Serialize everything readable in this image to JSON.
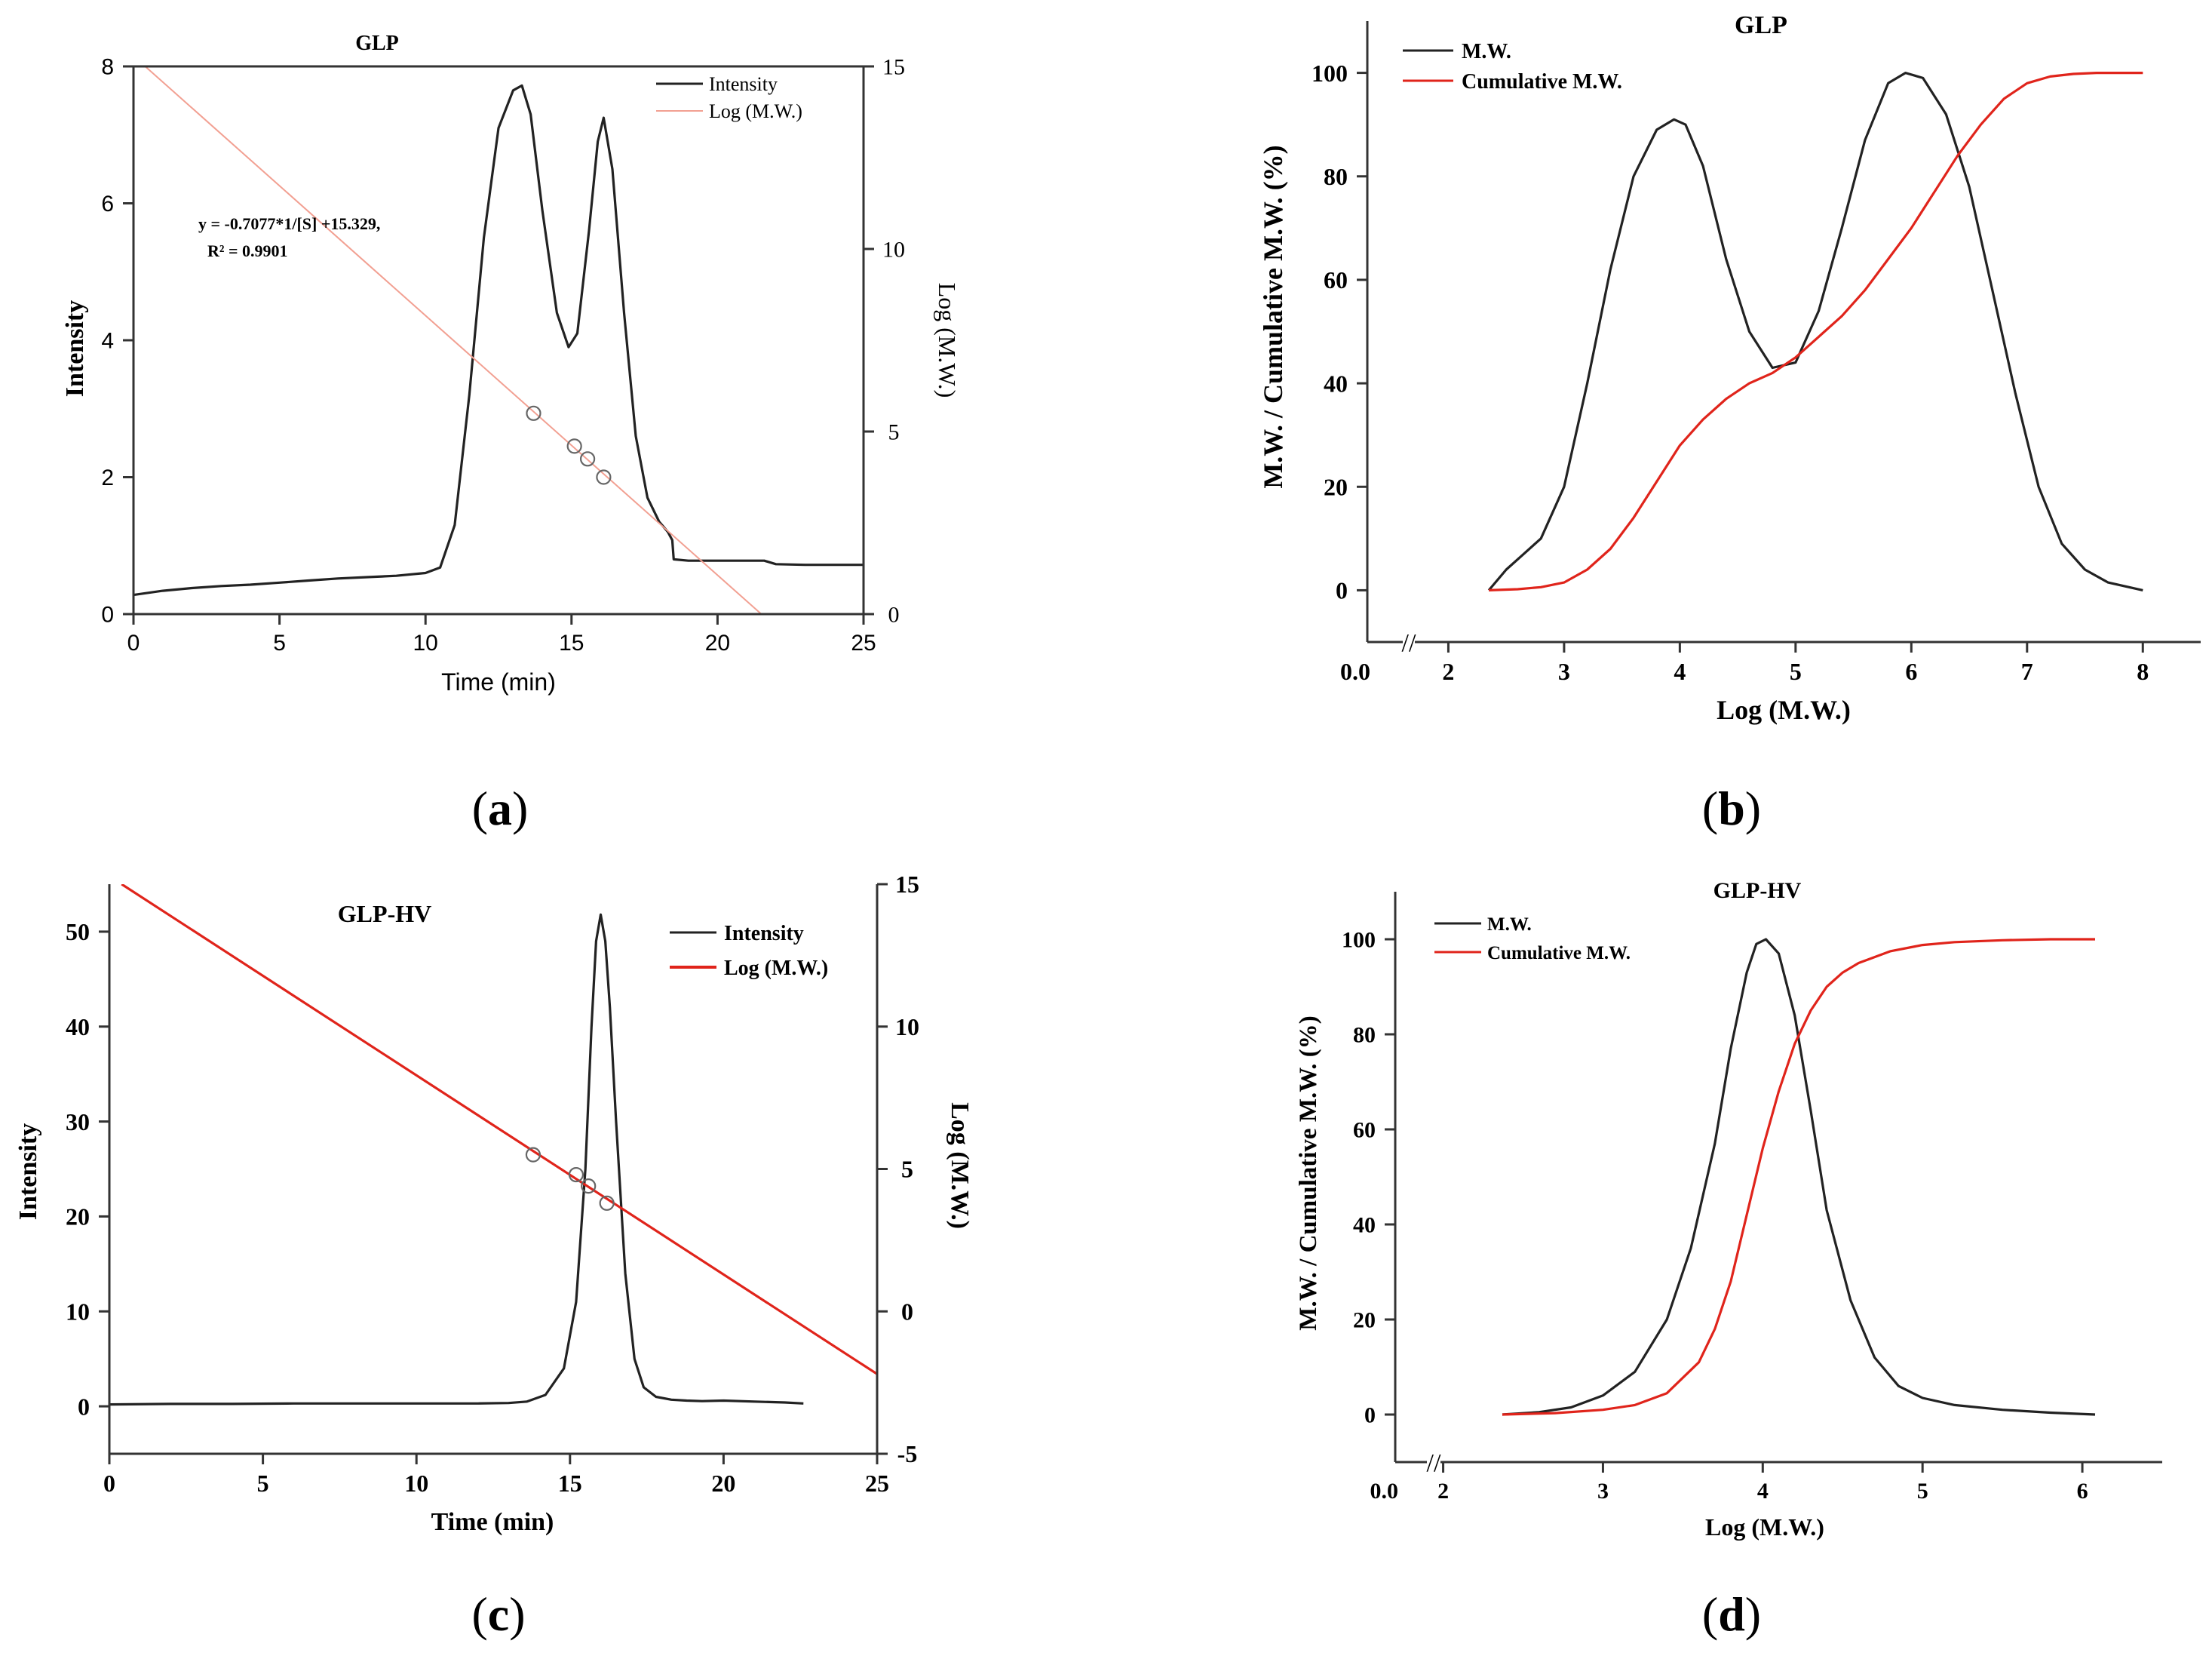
{
  "panels": [
    {
      "id": "a",
      "letter": "a",
      "type": "line",
      "title": "GLP",
      "xlabel": "Time (min)",
      "ylabel": "Intensity",
      "y2label": "Log (M.W.)",
      "xlim": [
        0,
        25
      ],
      "ylim": [
        0,
        8
      ],
      "y2lim": [
        0,
        15
      ],
      "xticks": [
        0,
        5,
        10,
        15,
        20,
        25
      ],
      "yticks": [
        0,
        2,
        4,
        6,
        8
      ],
      "y2ticks": [
        0,
        5,
        10,
        15
      ],
      "legend": [
        "Intensity",
        "Log (M.W.)"
      ],
      "annotation": [
        "y = -0.7077*1/[S] +15.329,",
        "R² = 0.9901"
      ],
      "series": [
        {
          "name": "Intensity",
          "axis": "y",
          "color": "#222222",
          "x": [
            0,
            1,
            2,
            3,
            4,
            5,
            6,
            7,
            8,
            9,
            10,
            10.5,
            11,
            11.5,
            12,
            12.5,
            13,
            13.3,
            13.6,
            14,
            14.5,
            14.9,
            15.2,
            15.6,
            15.9,
            16.1,
            16.4,
            16.8,
            17.2,
            17.6,
            18.0,
            18.3,
            18.45,
            18.5,
            19,
            20,
            21,
            21.6,
            22,
            23,
            24,
            25
          ],
          "y": [
            0.28,
            0.34,
            0.38,
            0.41,
            0.43,
            0.46,
            0.49,
            0.52,
            0.54,
            0.56,
            0.6,
            0.68,
            1.3,
            3.2,
            5.5,
            7.1,
            7.65,
            7.72,
            7.3,
            5.9,
            4.4,
            3.9,
            4.1,
            5.6,
            6.9,
            7.25,
            6.5,
            4.4,
            2.6,
            1.7,
            1.35,
            1.2,
            1.08,
            0.8,
            0.78,
            0.78,
            0.78,
            0.78,
            0.73,
            0.72,
            0.72,
            0.72
          ]
        },
        {
          "name": "Log (M.W.)",
          "axis": "y2",
          "color": "#f2a092",
          "x": [
            0.4,
            21.5
          ],
          "y": [
            15.0,
            0
          ]
        }
      ],
      "points": {
        "axis": "y2",
        "x": [
          13.7,
          15.1,
          15.55,
          16.1
        ],
        "y": [
          5.5,
          4.6,
          4.25,
          3.75
        ]
      }
    },
    {
      "id": "b",
      "letter": "b",
      "type": "line",
      "title": "GLP",
      "xlabel": "Log (M.W.)",
      "ylabel": "M.W. / Cumulative M.W. (%)",
      "xlim": [
        1.3,
        8.5
      ],
      "ylim": [
        -10,
        110
      ],
      "xticks": [
        2,
        3,
        4,
        5,
        6,
        7,
        8
      ],
      "extra_xtick_label": "0.0",
      "yticks": [
        0,
        20,
        40,
        60,
        80,
        100
      ],
      "axis_break": "//",
      "legend": [
        "M.W.",
        "Cumulative M.W."
      ],
      "series": [
        {
          "name": "M.W.",
          "color": "#222222",
          "x": [
            2.35,
            2.5,
            2.65,
            2.8,
            3.0,
            3.2,
            3.4,
            3.6,
            3.8,
            3.95,
            4.05,
            4.2,
            4.4,
            4.6,
            4.8,
            5.0,
            5.2,
            5.4,
            5.6,
            5.8,
            5.95,
            6.1,
            6.3,
            6.5,
            6.7,
            6.9,
            7.1,
            7.3,
            7.5,
            7.7,
            8.0
          ],
          "y": [
            0,
            4,
            7,
            10,
            20,
            40,
            62,
            80,
            89,
            91,
            90,
            82,
            64,
            50,
            43,
            44,
            54,
            70,
            87,
            98,
            100,
            99,
            92,
            78,
            58,
            38,
            20,
            9,
            4,
            1.5,
            0
          ]
        },
        {
          "name": "Cumulative M.W.",
          "color": "#e0241b",
          "x": [
            2.35,
            2.6,
            2.8,
            3.0,
            3.2,
            3.4,
            3.6,
            3.8,
            4.0,
            4.2,
            4.4,
            4.6,
            4.8,
            5.0,
            5.2,
            5.4,
            5.6,
            5.8,
            6.0,
            6.2,
            6.4,
            6.6,
            6.8,
            7.0,
            7.2,
            7.4,
            7.6,
            7.8,
            8.0
          ],
          "y": [
            0,
            0.2,
            0.6,
            1.5,
            4,
            8,
            14,
            21,
            28,
            33,
            37,
            40,
            42,
            45,
            49,
            53,
            58,
            64,
            70,
            77,
            84,
            90,
            95,
            98,
            99.3,
            99.8,
            100,
            100,
            100
          ]
        }
      ]
    },
    {
      "id": "c",
      "letter": "c",
      "type": "line",
      "title": "GLP-HV",
      "xlabel": "Time (min)",
      "ylabel": "Intensity",
      "y2label": "Log (M.W.)",
      "xlim": [
        0,
        25
      ],
      "ylim": [
        -5,
        55
      ],
      "y2lim": [
        -5,
        15
      ],
      "xticks": [
        0,
        5,
        10,
        15,
        20,
        25
      ],
      "yticks": [
        0,
        10,
        20,
        30,
        40,
        50
      ],
      "y2ticks": [
        -5,
        0,
        5,
        10,
        15
      ],
      "legend": [
        "Intensity",
        "Log (M.W.)"
      ],
      "series": [
        {
          "name": "Intensity",
          "axis": "y",
          "color": "#222222",
          "x": [
            0,
            2,
            4,
            6,
            8,
            10,
            12,
            13,
            13.6,
            14.2,
            14.8,
            15.2,
            15.5,
            15.7,
            15.85,
            16.0,
            16.15,
            16.3,
            16.5,
            16.8,
            17.1,
            17.4,
            17.8,
            18.3,
            18.8,
            19.3,
            20,
            21,
            22,
            22.6
          ],
          "y": [
            0.2,
            0.25,
            0.25,
            0.3,
            0.3,
            0.3,
            0.3,
            0.35,
            0.5,
            1.2,
            4,
            11,
            25,
            40,
            49,
            51.8,
            49,
            42,
            30,
            14,
            5,
            2,
            1,
            0.7,
            0.6,
            0.55,
            0.6,
            0.5,
            0.4,
            0.3
          ]
        },
        {
          "name": "Log (M.W.)",
          "axis": "y2",
          "color": "#e0241b",
          "x": [
            0.4,
            25
          ],
          "y": [
            15.0,
            -2.2
          ]
        }
      ],
      "points": {
        "axis": "y2",
        "x": [
          13.8,
          15.2,
          15.6,
          16.2
        ],
        "y": [
          5.5,
          4.8,
          4.4,
          3.8
        ]
      }
    },
    {
      "id": "d",
      "letter": "d",
      "type": "line",
      "title": "GLP-HV",
      "xlabel": "Log (M.W.)",
      "ylabel": "M.W. / Cumulative M.W. (%)",
      "xlim": [
        1.7,
        6.5
      ],
      "ylim": [
        -10,
        110
      ],
      "xticks": [
        2,
        3,
        4,
        5,
        6
      ],
      "extra_xtick_label": "0.0",
      "yticks": [
        0,
        20,
        40,
        60,
        80,
        100
      ],
      "axis_break": "//",
      "legend": [
        "M.W.",
        "Cumulative M.W."
      ],
      "series": [
        {
          "name": "M.W.",
          "color": "#222222",
          "x": [
            2.37,
            2.6,
            2.8,
            3.0,
            3.2,
            3.4,
            3.55,
            3.7,
            3.8,
            3.9,
            3.96,
            4.02,
            4.1,
            4.2,
            4.3,
            4.4,
            4.55,
            4.7,
            4.85,
            5.0,
            5.2,
            5.5,
            5.8,
            6.08
          ],
          "y": [
            0,
            0.5,
            1.5,
            4,
            9,
            20,
            35,
            57,
            77,
            93,
            99,
            100,
            97,
            84,
            64,
            43,
            24,
            12,
            6,
            3.5,
            2,
            1,
            0.4,
            0
          ]
        },
        {
          "name": "Cumulative M.W.",
          "color": "#e0241b",
          "x": [
            2.37,
            2.7,
            3.0,
            3.2,
            3.4,
            3.6,
            3.7,
            3.8,
            3.9,
            4.0,
            4.1,
            4.2,
            4.3,
            4.4,
            4.5,
            4.6,
            4.8,
            5.0,
            5.2,
            5.5,
            5.8,
            6.08
          ],
          "y": [
            0,
            0.3,
            1,
            2,
            4.5,
            11,
            18,
            28,
            42,
            56,
            68,
            78,
            85,
            90,
            93,
            95,
            97.5,
            98.8,
            99.4,
            99.8,
            100,
            100
          ]
        }
      ]
    }
  ]
}
